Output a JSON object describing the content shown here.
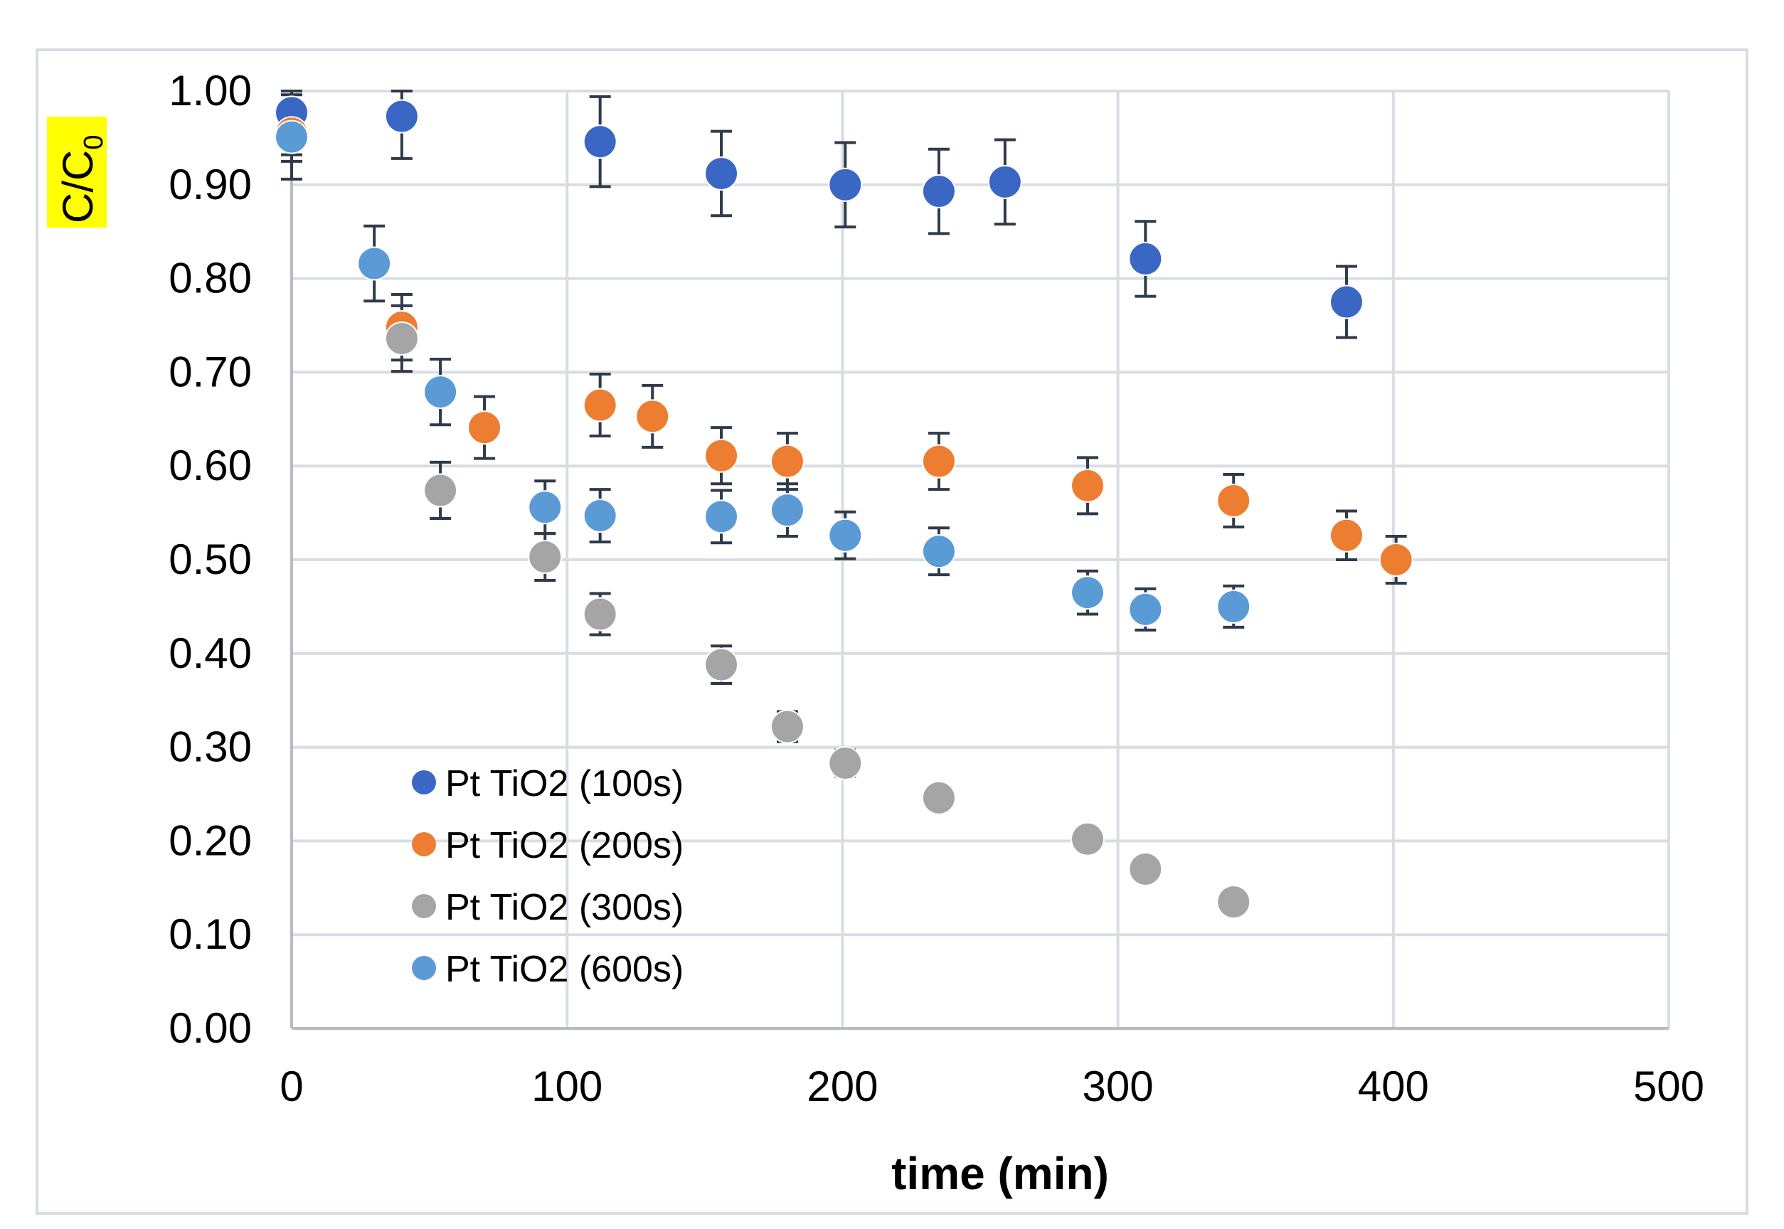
{
  "chart_data": {
    "type": "scatter",
    "title": "",
    "xlabel": "time (min)",
    "ylabel": "C/C",
    "ylabel_subscript": "0",
    "ylabel_highlight": "#ffff00",
    "xlim": [
      0,
      500
    ],
    "ylim": [
      0,
      1
    ],
    "xticks": [
      0,
      100,
      200,
      300,
      400,
      500
    ],
    "xtick_labels": [
      "0",
      "100",
      "200",
      "300",
      "400",
      "500"
    ],
    "yticks": [
      0,
      0.1,
      0.2,
      0.3,
      0.4,
      0.5,
      0.6,
      0.7,
      0.8,
      0.9,
      1.0
    ],
    "ytick_labels": [
      "0.00",
      "0.10",
      "0.20",
      "0.30",
      "0.40",
      "0.50",
      "0.60",
      "0.70",
      "0.80",
      "0.90",
      "1.00"
    ],
    "grid": true,
    "legend_position": "bottom-left",
    "series": [
      {
        "name": "Pt TiO2 (100s)",
        "color": "#3a66c4",
        "x": [
          0,
          40,
          112,
          156,
          201,
          235,
          259,
          310,
          383
        ],
        "y": [
          0.977,
          0.973,
          0.946,
          0.912,
          0.9,
          0.893,
          0.903,
          0.821,
          0.775
        ],
        "err": [
          0.045,
          0.045,
          0.048,
          0.045,
          0.045,
          0.045,
          0.045,
          0.04,
          0.038
        ]
      },
      {
        "name": "Pt TiO2 (200s)",
        "color": "#ed7d31",
        "x": [
          0,
          40,
          70,
          112,
          131,
          156,
          180,
          235,
          289,
          342,
          383,
          401
        ],
        "y": [
          0.955,
          0.748,
          0.641,
          0.665,
          0.653,
          0.611,
          0.605,
          0.605,
          0.579,
          0.563,
          0.526,
          0.5
        ],
        "err": [
          0.03,
          0.035,
          0.033,
          0.033,
          0.033,
          0.03,
          0.03,
          0.03,
          0.03,
          0.028,
          0.026,
          0.025
        ]
      },
      {
        "name": "Pt TiO2 (300s)",
        "color": "#a5a5a5",
        "x": [
          40,
          54,
          92,
          112,
          156,
          180,
          201,
          235,
          289,
          310,
          342
        ],
        "y": [
          0.736,
          0.574,
          0.503,
          0.442,
          0.388,
          0.322,
          0.283,
          0.246,
          0.202,
          0.17,
          0.135
        ],
        "err": [
          0.035,
          0.03,
          0.025,
          0.022,
          0.02,
          0.016,
          0.014,
          0.012,
          0.01,
          0.008,
          0.006
        ]
      },
      {
        "name": "Pt TiO2 (600s)",
        "color": "#5b9bd5",
        "x": [
          0,
          30,
          54,
          92,
          112,
          156,
          180,
          201,
          235,
          289,
          310,
          342
        ],
        "y": [
          0.951,
          0.816,
          0.679,
          0.556,
          0.547,
          0.546,
          0.553,
          0.526,
          0.509,
          0.465,
          0.447,
          0.45
        ],
        "err": [
          0.045,
          0.04,
          0.035,
          0.028,
          0.028,
          0.028,
          0.028,
          0.025,
          0.025,
          0.023,
          0.022,
          0.022
        ]
      }
    ]
  }
}
